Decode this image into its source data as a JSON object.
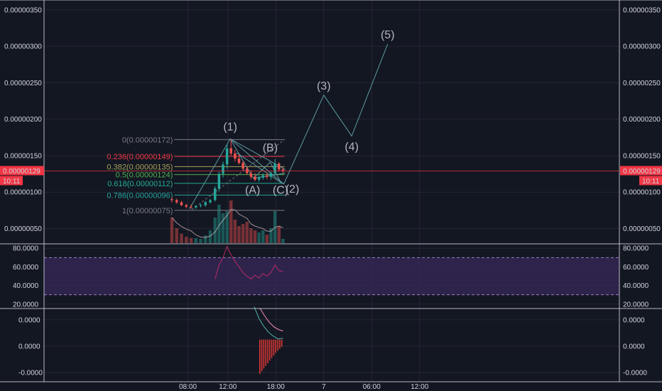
{
  "colors": {
    "background": "#131722",
    "grid": "#242733",
    "axis_text": "#d1d4dc",
    "up": "#26a69a",
    "down": "#ef5350",
    "wave": "#5d9aa0",
    "current_price": "#f23645",
    "rsi_line": "#b72b66",
    "rsi_band": "#3b2a5c",
    "macd_line": "#4db6ac",
    "signal_line": "#f48fb1",
    "hist": "#e53935"
  },
  "price_axis": {
    "left_ticks": [
      "0.00000350",
      "0.00000300",
      "0.00000250",
      "0.00000200",
      "0.00000150",
      "0.00000100",
      "0.00000050"
    ],
    "right_ticks": [
      "0.00000350",
      "0.00000300",
      "0.00000250",
      "0.00000200",
      "0.00000150",
      "0.00000100",
      "0.00000050"
    ],
    "current_price": "0.00000129",
    "countdown": "10:11"
  },
  "rsi_axis": {
    "left_ticks": [
      "80.0000",
      "60.0000",
      "40.0000",
      "20.0000"
    ],
    "right_ticks": [
      "80.0000",
      "60.0000",
      "40.0000",
      "20.0000"
    ]
  },
  "macd_axis": {
    "left_ticks": [
      "0.0000",
      "0.0000",
      "-0.0000"
    ],
    "right_ticks": [
      "0.0000",
      "0.0000",
      "-0.0000"
    ]
  },
  "time_axis": [
    "08:00",
    "12:00",
    "18:00",
    "7",
    "06:00",
    "12:00"
  ],
  "chart_data": {
    "type": "candlestick",
    "ylim": [
      3e-07,
      3.635e-06
    ],
    "x_range": [
      0,
      72
    ],
    "time_ticks": [
      {
        "label": "08:00",
        "x": 18
      },
      {
        "label": "12:00",
        "x": 23
      },
      {
        "label": "18:00",
        "x": 29
      },
      {
        "label": "7",
        "x": 35
      },
      {
        "label": "06:00",
        "x": 41
      },
      {
        "label": "12:00",
        "x": 47
      }
    ],
    "fibonacci": [
      {
        "label": "0(0.00000172)",
        "value": 1.72e-06,
        "color": "#787b86"
      },
      {
        "label": "0.236(0.00000149)",
        "value": 1.49e-06,
        "color": "#f23645"
      },
      {
        "label": "0.382(0.00000135)",
        "value": 1.35e-06,
        "color": "#a8a05a"
      },
      {
        "label": "0.5(0.00000124)",
        "value": 1.24e-06,
        "color": "#4caf50"
      },
      {
        "label": "0.618(0.00000112)",
        "value": 1.12e-06,
        "color": "#22ab94"
      },
      {
        "label": "0.786(0.00000096)",
        "value": 9.6e-07,
        "color": "#26a69a"
      },
      {
        "label": "1(0.00000075)",
        "value": 7.5e-07,
        "color": "#787b86"
      }
    ],
    "elliott_waves": [
      {
        "label": "(1)",
        "x": 23.3,
        "y": 1.73e-06
      },
      {
        "label": "(2)",
        "x": 30.0,
        "y": 1.11e-06
      },
      {
        "label": "(3)",
        "x": 35.0,
        "y": 2.33e-06
      },
      {
        "label": "(4)",
        "x": 38.5,
        "y": 1.77e-06
      },
      {
        "label": "(5)",
        "x": 43.0,
        "y": 3.03e-06
      }
    ],
    "abc_labels": [
      {
        "label": "(A)",
        "x": 26.1,
        "y": 9.8e-07
      },
      {
        "label": "(B)",
        "x": 28.3,
        "y": 1.56e-06
      },
      {
        "label": "(C)",
        "x": 29.6,
        "y": 9.8e-07
      }
    ],
    "candles": [
      {
        "x": 16.0,
        "o": 9e-07,
        "h": 9.3e-07,
        "l": 8.6e-07,
        "c": 8.9e-07
      },
      {
        "x": 16.6,
        "o": 8.9e-07,
        "h": 9.1e-07,
        "l": 8.4e-07,
        "c": 8.6e-07
      },
      {
        "x": 17.2,
        "o": 8.6e-07,
        "h": 8.8e-07,
        "l": 8.1e-07,
        "c": 8.2e-07
      },
      {
        "x": 17.8,
        "o": 8.2e-07,
        "h": 8.4e-07,
        "l": 7.8e-07,
        "c": 8e-07
      },
      {
        "x": 18.4,
        "o": 8e-07,
        "h": 8.3e-07,
        "l": 7.7e-07,
        "c": 7.9e-07
      },
      {
        "x": 19.0,
        "o": 7.9e-07,
        "h": 8.2e-07,
        "l": 7.7e-07,
        "c": 8.1e-07
      },
      {
        "x": 19.6,
        "o": 8.1e-07,
        "h": 8.4e-07,
        "l": 7.9e-07,
        "c": 8.2e-07
      },
      {
        "x": 20.2,
        "o": 8.2e-07,
        "h": 8.8e-07,
        "l": 8e-07,
        "c": 8.6e-07
      },
      {
        "x": 20.8,
        "o": 8.6e-07,
        "h": 9.1e-07,
        "l": 8.4e-07,
        "c": 8.9e-07
      },
      {
        "x": 21.4,
        "o": 8.9e-07,
        "h": 1.08e-06,
        "l": 8.7e-07,
        "c": 1.05e-06
      },
      {
        "x": 21.9,
        "o": 1.05e-06,
        "h": 1.28e-06,
        "l": 1.01e-06,
        "c": 1.25e-06
      },
      {
        "x": 22.4,
        "o": 1.25e-06,
        "h": 1.42e-06,
        "l": 1.2e-06,
        "c": 1.38e-06
      },
      {
        "x": 22.9,
        "o": 1.38e-06,
        "h": 1.65e-06,
        "l": 1.32e-06,
        "c": 1.6e-06
      },
      {
        "x": 23.4,
        "o": 1.6e-06,
        "h": 1.72e-06,
        "l": 1.5e-06,
        "c": 1.53e-06
      },
      {
        "x": 23.9,
        "o": 1.53e-06,
        "h": 1.58e-06,
        "l": 1.42e-06,
        "c": 1.46e-06
      },
      {
        "x": 24.4,
        "o": 1.46e-06,
        "h": 1.52e-06,
        "l": 1.38e-06,
        "c": 1.4e-06
      },
      {
        "x": 24.9,
        "o": 1.4e-06,
        "h": 1.43e-06,
        "l": 1.3e-06,
        "c": 1.32e-06
      },
      {
        "x": 25.4,
        "o": 1.32e-06,
        "h": 1.35e-06,
        "l": 1.24e-06,
        "c": 1.26e-06
      },
      {
        "x": 25.9,
        "o": 1.26e-06,
        "h": 1.3e-06,
        "l": 1.18e-06,
        "c": 1.21e-06
      },
      {
        "x": 26.4,
        "o": 1.21e-06,
        "h": 1.26e-06,
        "l": 1.15e-06,
        "c": 1.17e-06
      },
      {
        "x": 26.9,
        "o": 1.17e-06,
        "h": 1.23e-06,
        "l": 1.14e-06,
        "c": 1.2e-06
      },
      {
        "x": 27.4,
        "o": 1.2e-06,
        "h": 1.26e-06,
        "l": 1.17e-06,
        "c": 1.23e-06
      },
      {
        "x": 27.9,
        "o": 1.23e-06,
        "h": 1.27e-06,
        "l": 1.18e-06,
        "c": 1.21e-06
      },
      {
        "x": 28.4,
        "o": 1.21e-06,
        "h": 1.28e-06,
        "l": 1.17e-06,
        "c": 1.26e-06
      },
      {
        "x": 28.9,
        "o": 1.26e-06,
        "h": 1.45e-06,
        "l": 1.23e-06,
        "c": 1.39e-06
      },
      {
        "x": 29.4,
        "o": 1.39e-06,
        "h": 1.41e-06,
        "l": 1.28e-06,
        "c": 1.31e-06
      },
      {
        "x": 29.9,
        "o": 1.31e-06,
        "h": 1.34e-06,
        "l": 1.26e-06,
        "c": 1.29e-06
      }
    ],
    "volume": [
      {
        "x": 16.0,
        "v": 0.6,
        "up": false
      },
      {
        "x": 16.6,
        "v": 0.35,
        "up": false
      },
      {
        "x": 17.2,
        "v": 0.22,
        "up": false
      },
      {
        "x": 17.8,
        "v": 0.15,
        "up": false
      },
      {
        "x": 18.4,
        "v": 0.12,
        "up": false
      },
      {
        "x": 19.0,
        "v": 0.12,
        "up": true
      },
      {
        "x": 19.6,
        "v": 0.1,
        "up": true
      },
      {
        "x": 20.2,
        "v": 0.18,
        "up": true
      },
      {
        "x": 20.8,
        "v": 0.3,
        "up": true
      },
      {
        "x": 21.4,
        "v": 0.6,
        "up": true
      },
      {
        "x": 21.9,
        "v": 0.9,
        "up": true
      },
      {
        "x": 22.4,
        "v": 0.7,
        "up": true
      },
      {
        "x": 22.9,
        "v": 0.75,
        "up": true
      },
      {
        "x": 23.4,
        "v": 1.0,
        "up": false
      },
      {
        "x": 23.9,
        "v": 0.55,
        "up": false
      },
      {
        "x": 24.4,
        "v": 0.4,
        "up": false
      },
      {
        "x": 24.9,
        "v": 0.45,
        "up": false
      },
      {
        "x": 25.4,
        "v": 0.5,
        "up": false
      },
      {
        "x": 25.9,
        "v": 0.35,
        "up": false
      },
      {
        "x": 26.4,
        "v": 0.3,
        "up": false
      },
      {
        "x": 26.9,
        "v": 0.25,
        "up": true
      },
      {
        "x": 27.4,
        "v": 0.3,
        "up": true
      },
      {
        "x": 27.9,
        "v": 0.2,
        "up": false
      },
      {
        "x": 28.4,
        "v": 0.35,
        "up": true
      },
      {
        "x": 28.9,
        "v": 0.75,
        "up": true
      },
      {
        "x": 29.4,
        "v": 0.4,
        "up": false
      },
      {
        "x": 29.9,
        "v": 0.1,
        "up": true
      }
    ],
    "rsi": {
      "ylim": [
        16,
        84
      ],
      "band": [
        30,
        70
      ],
      "values": [
        {
          "x": 21.4,
          "v": 47
        },
        {
          "x": 21.9,
          "v": 62
        },
        {
          "x": 22.4,
          "v": 70
        },
        {
          "x": 22.9,
          "v": 82
        },
        {
          "x": 23.4,
          "v": 73
        },
        {
          "x": 23.9,
          "v": 66
        },
        {
          "x": 24.4,
          "v": 60
        },
        {
          "x": 24.9,
          "v": 54
        },
        {
          "x": 25.4,
          "v": 50
        },
        {
          "x": 25.9,
          "v": 47
        },
        {
          "x": 26.4,
          "v": 51
        },
        {
          "x": 26.9,
          "v": 48
        },
        {
          "x": 27.4,
          "v": 53
        },
        {
          "x": 27.9,
          "v": 50
        },
        {
          "x": 28.4,
          "v": 54
        },
        {
          "x": 28.9,
          "v": 62
        },
        {
          "x": 29.4,
          "v": 56
        },
        {
          "x": 29.9,
          "v": 55
        }
      ]
    },
    "macd": {
      "ylim": [
        -3.2,
        2.3
      ],
      "macd_line": [
        {
          "x": 26.3,
          "v": 2.5
        },
        {
          "x": 26.9,
          "v": 1.6
        },
        {
          "x": 27.5,
          "v": 1.0
        },
        {
          "x": 28.1,
          "v": 0.55
        },
        {
          "x": 28.7,
          "v": 0.25
        },
        {
          "x": 29.3,
          "v": 0.05
        },
        {
          "x": 29.9,
          "v": 0.1
        }
      ],
      "signal_line": [
        {
          "x": 27.0,
          "v": 2.4
        },
        {
          "x": 27.6,
          "v": 1.8
        },
        {
          "x": 28.2,
          "v": 1.3
        },
        {
          "x": 28.8,
          "v": 0.95
        },
        {
          "x": 29.4,
          "v": 0.75
        },
        {
          "x": 29.9,
          "v": 0.65
        }
      ],
      "histogram": [
        {
          "x": 27.0,
          "v": -2.6
        },
        {
          "x": 27.25,
          "v": -2.4
        },
        {
          "x": 27.5,
          "v": -2.2
        },
        {
          "x": 27.75,
          "v": -2.0
        },
        {
          "x": 28.0,
          "v": -1.8
        },
        {
          "x": 28.25,
          "v": -1.6
        },
        {
          "x": 28.5,
          "v": -1.4
        },
        {
          "x": 28.75,
          "v": -1.2
        },
        {
          "x": 29.0,
          "v": -1.0
        },
        {
          "x": 29.25,
          "v": -0.85
        },
        {
          "x": 29.5,
          "v": -0.7
        },
        {
          "x": 29.75,
          "v": -0.55
        }
      ]
    }
  }
}
